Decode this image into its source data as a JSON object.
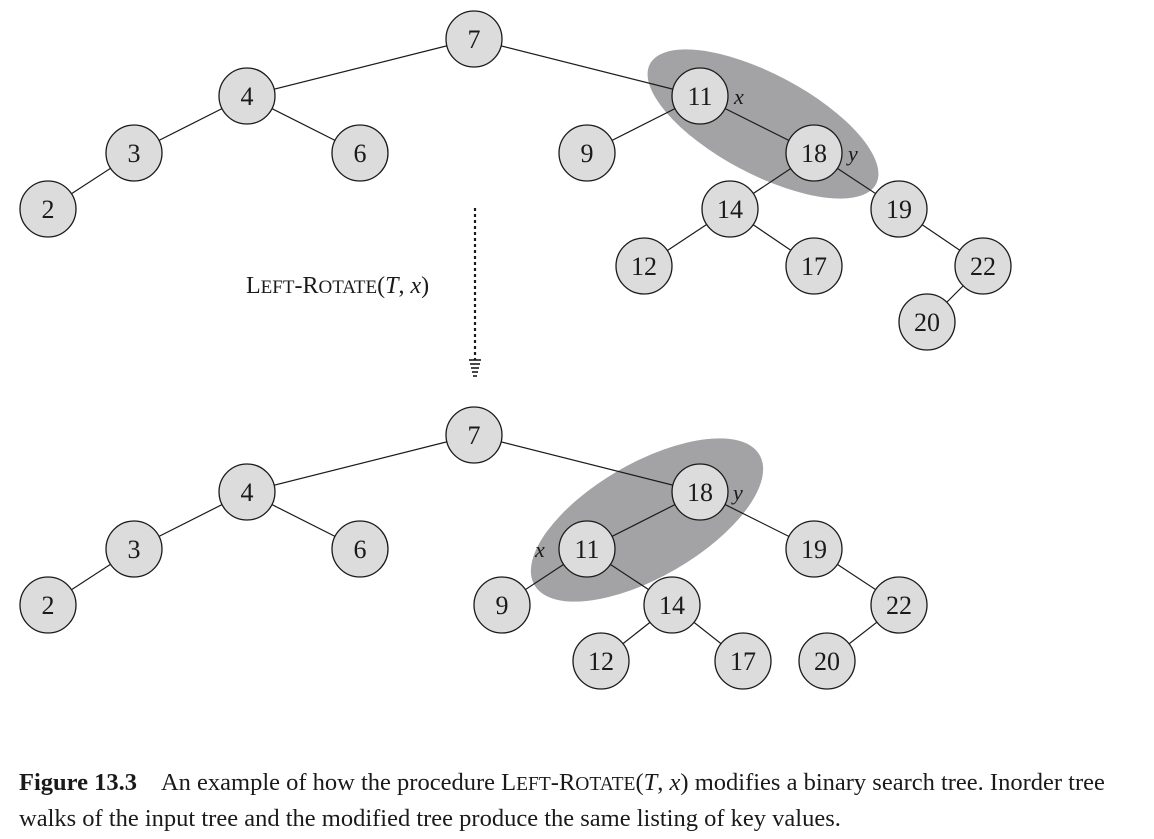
{
  "diagram": {
    "operation": {
      "name_first": "L",
      "name_first_rest": "EFT",
      "name_sep": "-",
      "name_second": "R",
      "name_second_rest": "OTATE",
      "args_open": "(",
      "arg1": "T",
      "args_sep": ", ",
      "arg2": "x",
      "args_close": ")"
    },
    "pivot_labels": {
      "x": "x",
      "y": "y"
    },
    "before_tree": {
      "nodes": [
        {
          "id": "7",
          "label": "7"
        },
        {
          "id": "4",
          "label": "4"
        },
        {
          "id": "3",
          "label": "3"
        },
        {
          "id": "2",
          "label": "2"
        },
        {
          "id": "6",
          "label": "6"
        },
        {
          "id": "11",
          "label": "11"
        },
        {
          "id": "9",
          "label": "9"
        },
        {
          "id": "18",
          "label": "18"
        },
        {
          "id": "14",
          "label": "14"
        },
        {
          "id": "12",
          "label": "12"
        },
        {
          "id": "17",
          "label": "17"
        },
        {
          "id": "19",
          "label": "19"
        },
        {
          "id": "22",
          "label": "22"
        },
        {
          "id": "20",
          "label": "20"
        }
      ],
      "edges": [
        [
          "7",
          "4"
        ],
        [
          "7",
          "11"
        ],
        [
          "4",
          "3"
        ],
        [
          "4",
          "6"
        ],
        [
          "3",
          "2"
        ],
        [
          "11",
          "9"
        ],
        [
          "11",
          "18"
        ],
        [
          "18",
          "14"
        ],
        [
          "18",
          "19"
        ],
        [
          "14",
          "12"
        ],
        [
          "14",
          "17"
        ],
        [
          "19",
          "22"
        ],
        [
          "22",
          "20"
        ]
      ]
    },
    "after_tree": {
      "nodes": [
        {
          "id": "7",
          "label": "7"
        },
        {
          "id": "4",
          "label": "4"
        },
        {
          "id": "3",
          "label": "3"
        },
        {
          "id": "2",
          "label": "2"
        },
        {
          "id": "6",
          "label": "6"
        },
        {
          "id": "18",
          "label": "18"
        },
        {
          "id": "11",
          "label": "11"
        },
        {
          "id": "9",
          "label": "9"
        },
        {
          "id": "14",
          "label": "14"
        },
        {
          "id": "12",
          "label": "12"
        },
        {
          "id": "17",
          "label": "17"
        },
        {
          "id": "19",
          "label": "19"
        },
        {
          "id": "22",
          "label": "22"
        },
        {
          "id": "20",
          "label": "20"
        }
      ],
      "edges": [
        [
          "7",
          "4"
        ],
        [
          "7",
          "18"
        ],
        [
          "4",
          "3"
        ],
        [
          "4",
          "6"
        ],
        [
          "3",
          "2"
        ],
        [
          "18",
          "11"
        ],
        [
          "18",
          "19"
        ],
        [
          "11",
          "9"
        ],
        [
          "11",
          "14"
        ],
        [
          "14",
          "12"
        ],
        [
          "14",
          "17"
        ],
        [
          "19",
          "22"
        ],
        [
          "22",
          "20"
        ]
      ]
    }
  },
  "caption": {
    "figure_label": "Figure 13.3",
    "text_before": "An example of how the procedure ",
    "proc_first": "L",
    "proc_first_rest": "EFT",
    "proc_sep": "-",
    "proc_second": "R",
    "proc_second_rest": "OTATE",
    "proc_open": "(",
    "proc_arg1": "T",
    "proc_args_sep": ", ",
    "proc_arg2": "x",
    "proc_close": ")",
    "text_after": " modifies a binary search tree. Inorder tree walks of the input tree and the modified tree produce the same listing of key values."
  }
}
